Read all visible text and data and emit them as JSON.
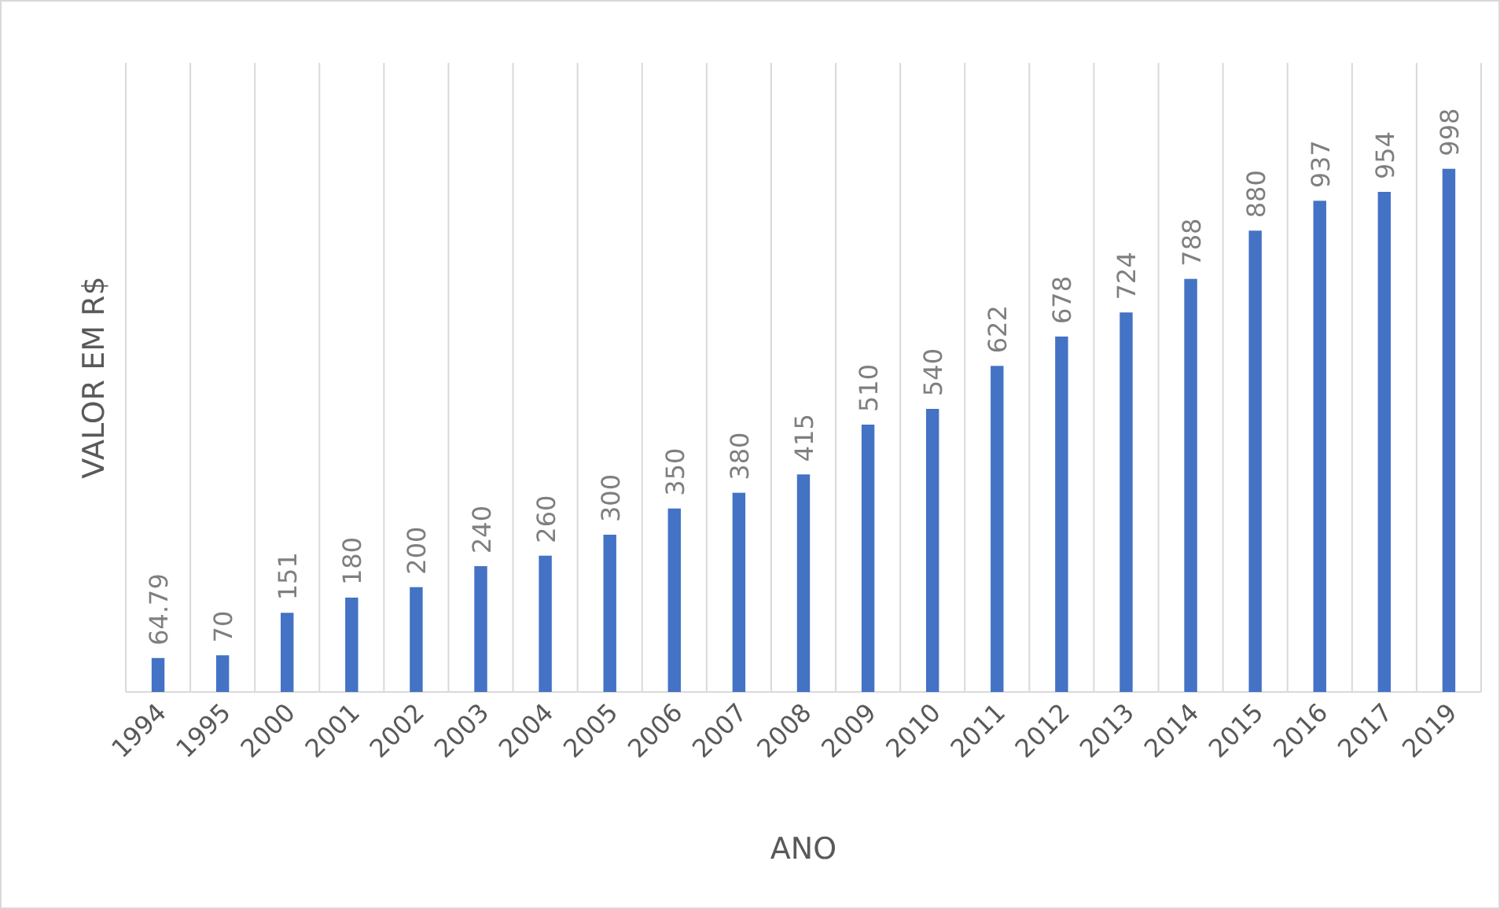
{
  "chart_data": {
    "type": "bar",
    "xlabel": "ANO",
    "ylabel": "VALOR EM R$",
    "categories": [
      "1994",
      "1995",
      "2000",
      "2001",
      "2002",
      "2003",
      "2004",
      "2005",
      "2006",
      "2007",
      "2008",
      "2009",
      "2010",
      "2011",
      "2012",
      "2013",
      "2014",
      "2015",
      "2016",
      "2017",
      "2019"
    ],
    "values": [
      64.79,
      70,
      151,
      180,
      200,
      240,
      260,
      300,
      350,
      380,
      415,
      510,
      540,
      622,
      678,
      724,
      788,
      880,
      937,
      954,
      998
    ],
    "color": "#4472c4",
    "ylim": [
      0,
      1200
    ],
    "tick_labels": "x",
    "data_labels": true,
    "grid": "x"
  }
}
